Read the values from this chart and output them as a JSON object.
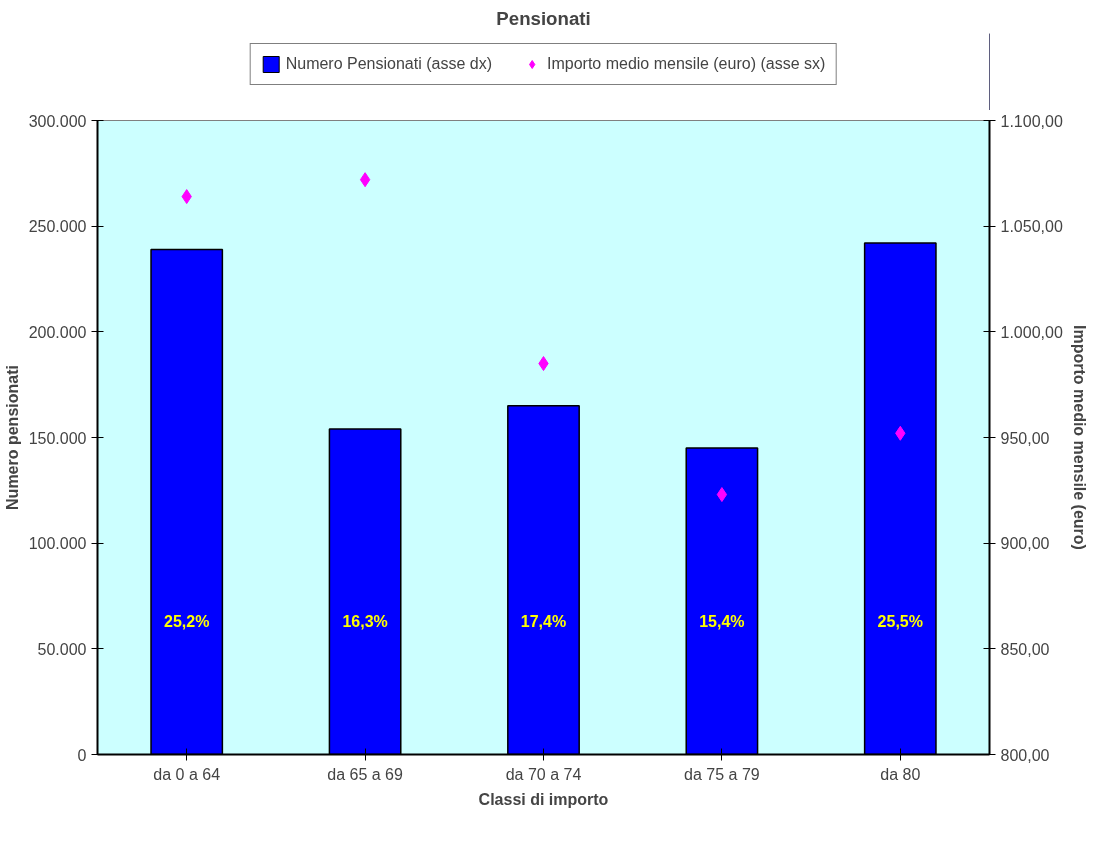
{
  "chart_data": {
    "type": "scatter",
    "title": "Pensionati",
    "xlabel": "Classi di importo",
    "ylabel": "Numero pensionati",
    "y2label": "Importo medio mensile (euro)",
    "categories": [
      "da 0 a 64",
      "da 65 a 69",
      "da 70 a 74",
      "da 75 a 79",
      "da 80"
    ],
    "series": [
      {
        "name": "Numero Pensionati (asse dx)",
        "type": "bar",
        "color": "#0000ff",
        "values": [
          239000,
          154000,
          165000,
          145000,
          242000
        ]
      },
      {
        "name": "Importo medio mensile (euro) (asse sx)",
        "axis": "y2",
        "marker": "diamond",
        "color": "#ff00ff",
        "values": [
          1064,
          1072,
          985,
          923,
          952
        ]
      }
    ],
    "ylim": [
      0,
      300000
    ],
    "yticks": [
      {
        "value": 0,
        "label": "0"
      },
      {
        "value": 50000,
        "label": "50.000"
      },
      {
        "value": 100000,
        "label": "100.000"
      },
      {
        "value": 150000,
        "label": "150.000"
      },
      {
        "value": 200000,
        "label": "200.000"
      },
      {
        "value": 250000,
        "label": "250.000"
      },
      {
        "value": 300000,
        "label": "300.000"
      }
    ],
    "y2lim": [
      800,
      1100
    ],
    "y2ticks": [
      {
        "value": 800,
        "label": "800,00"
      },
      {
        "value": 850,
        "label": "850,00"
      },
      {
        "value": 900,
        "label": "900,00"
      },
      {
        "value": 950,
        "label": "950,00"
      },
      {
        "value": 1000,
        "label": "1.000,00"
      },
      {
        "value": 1050,
        "label": "1.050,00"
      },
      {
        "value": 1100,
        "label": "1.100,00"
      }
    ],
    "annotations": [
      "25,2%",
      "16,3%",
      "17,4%",
      "15,4%",
      "25,5%"
    ],
    "legend": "top",
    "grid": false
  }
}
